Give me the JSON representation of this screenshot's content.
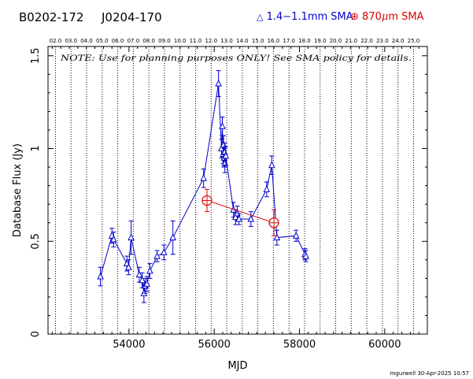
{
  "header": {
    "source_name": "B0202-172",
    "calibrator_name": "J0204-170",
    "legend_low_band": "1.4−1.1mm SMA",
    "legend_high_band_prefix": "870",
    "legend_high_band_mu": "μ",
    "legend_high_band_suffix": "m SMA"
  },
  "note": "NOTE: Use for planning purposes ONLY!  See SMA policy for details.",
  "footer": "mgurwell 30-Apr-2025 10:57",
  "colors": {
    "low_band": "#0000cc",
    "high_band": "#dd0000",
    "axes": "#000000"
  },
  "chart_data": {
    "type": "scatter",
    "xlabel": "MJD",
    "ylabel": "Database Flux (Jy)",
    "xlim": [
      52100,
      61000
    ],
    "ylim": [
      0,
      1.55
    ],
    "x_ticks": [
      54000,
      56000,
      58000,
      60000
    ],
    "y_ticks": [
      0,
      0.5,
      1,
      1.5
    ],
    "y_tick_labels": [
      "0",
      "0.5",
      "1",
      "1.5"
    ],
    "top_axis_year_labels": [
      "02.0",
      "03.0",
      "04.0",
      "05.0",
      "06.0",
      "07.0",
      "08.0",
      "09.0",
      "10.0",
      "11.0",
      "12.0",
      "13.0",
      "14.0",
      "15.0",
      "16.0",
      "17.0",
      "18.0",
      "19.0",
      "20.0",
      "21.0",
      "22.0",
      "23.0",
      "24.0",
      "25.0",
      "26.0"
    ],
    "top_axis_year_mjd": [
      52275,
      52640,
      53005,
      53371,
      53736,
      54101,
      54466,
      54832,
      55197,
      55562,
      55927,
      56293,
      56658,
      57023,
      57388,
      57754,
      58119,
      58484,
      58849,
      59215,
      59580,
      59945,
      60310,
      60676,
      61041
    ],
    "vertical_year_lines": true,
    "legend_placement": "top-right",
    "series": [
      {
        "name": "1.4−1.1mm SMA",
        "marker": "triangle",
        "connected": true,
        "points": [
          {
            "x": 53330,
            "y": 0.31,
            "err": 0.05
          },
          {
            "x": 53600,
            "y": 0.53,
            "err": 0.04
          },
          {
            "x": 53640,
            "y": 0.51,
            "err": 0.04
          },
          {
            "x": 53950,
            "y": 0.38,
            "err": 0.04
          },
          {
            "x": 53990,
            "y": 0.36,
            "err": 0.04
          },
          {
            "x": 54050,
            "y": 0.52,
            "err": 0.09
          },
          {
            "x": 54240,
            "y": 0.32,
            "err": 0.04
          },
          {
            "x": 54310,
            "y": 0.29,
            "err": 0.04
          },
          {
            "x": 54350,
            "y": 0.22,
            "err": 0.05
          },
          {
            "x": 54380,
            "y": 0.26,
            "err": 0.04
          },
          {
            "x": 54420,
            "y": 0.27,
            "err": 0.04
          },
          {
            "x": 54490,
            "y": 0.34,
            "err": 0.04
          },
          {
            "x": 54660,
            "y": 0.42,
            "err": 0.03
          },
          {
            "x": 54820,
            "y": 0.44,
            "err": 0.04
          },
          {
            "x": 55030,
            "y": 0.52,
            "err": 0.09
          },
          {
            "x": 55750,
            "y": 0.84,
            "err": 0.05
          },
          {
            "x": 56100,
            "y": 1.35,
            "err": 0.07
          },
          {
            "x": 56170,
            "y": 1.0,
            "err": 0.05
          },
          {
            "x": 56190,
            "y": 1.12,
            "err": 0.05
          },
          {
            "x": 56210,
            "y": 0.97,
            "err": 0.05
          },
          {
            "x": 56220,
            "y": 1.02,
            "err": 0.05
          },
          {
            "x": 56230,
            "y": 0.95,
            "err": 0.05
          },
          {
            "x": 56240,
            "y": 0.98,
            "err": 0.05
          },
          {
            "x": 56250,
            "y": 0.92,
            "err": 0.05
          },
          {
            "x": 56270,
            "y": 0.96,
            "err": 0.05
          },
          {
            "x": 56450,
            "y": 0.67,
            "err": 0.04
          },
          {
            "x": 56500,
            "y": 0.63,
            "err": 0.04
          },
          {
            "x": 56540,
            "y": 0.65,
            "err": 0.04
          },
          {
            "x": 56580,
            "y": 0.62,
            "err": 0.03
          },
          {
            "x": 56860,
            "y": 0.62,
            "err": 0.04
          },
          {
            "x": 57230,
            "y": 0.78,
            "err": 0.04
          },
          {
            "x": 57350,
            "y": 0.91,
            "err": 0.05
          },
          {
            "x": 57470,
            "y": 0.52,
            "err": 0.04
          },
          {
            "x": 57920,
            "y": 0.53,
            "err": 0.03
          },
          {
            "x": 58130,
            "y": 0.43,
            "err": 0.03
          },
          {
            "x": 58150,
            "y": 0.42,
            "err": 0.03
          }
        ]
      },
      {
        "name": "870μm SMA",
        "marker": "circled-plus",
        "connected": true,
        "points": [
          {
            "x": 55830,
            "y": 0.72,
            "err": 0.06
          },
          {
            "x": 57400,
            "y": 0.6,
            "err": 0.07
          }
        ]
      }
    ]
  }
}
